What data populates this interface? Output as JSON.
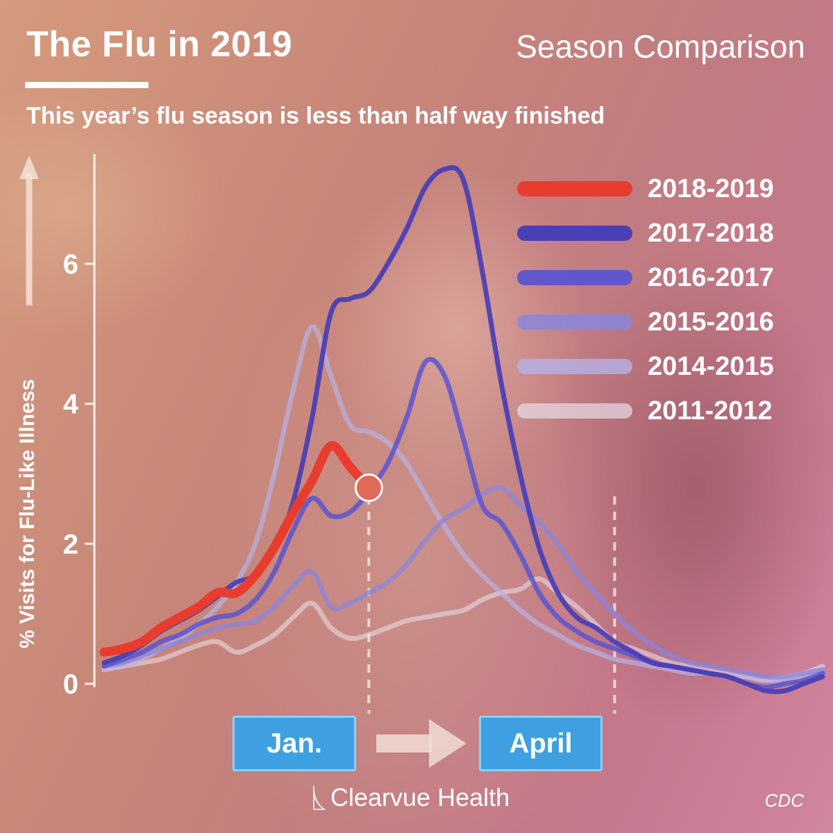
{
  "header": {
    "title": "The Flu in 2019",
    "subheading": "Season Comparison",
    "subtitle": "This year’s flu season is less than half way finished"
  },
  "markers": {
    "start_label": "Jan.",
    "end_label": "April"
  },
  "footer": {
    "brand": "Clearvue Health",
    "source": "CDC"
  },
  "icons": {
    "axis_arrow": "up-arrow-icon",
    "timeline_arrow": "right-arrow-icon",
    "brand_logo": "clearvue-logo-icon"
  },
  "colors": {
    "accent_month_box": "#3ea0e0",
    "highlight_point": "#e06a56"
  },
  "chart_data": {
    "type": "line",
    "xlabel": "",
    "ylabel": "% Visits for Flu-Like Illness",
    "ylim": [
      0,
      7.5
    ],
    "y_ticks": [
      0,
      2,
      4,
      6
    ],
    "grid": false,
    "legend_position": "top-right",
    "x_markers": [
      {
        "label": "Jan.",
        "x": 14
      },
      {
        "label": "April",
        "x": 27
      }
    ],
    "highlight_point": {
      "series": "2018-2019",
      "x": 14,
      "y": 2.8
    },
    "series": [
      {
        "name": "2018-2019",
        "color": "#e83c2e",
        "width": 13,
        "opacity": 1,
        "x": [
          0,
          1,
          2,
          3,
          4,
          5,
          6,
          7,
          8,
          9,
          10,
          11,
          12,
          13,
          14
        ],
        "y": [
          0.45,
          0.5,
          0.6,
          0.8,
          0.95,
          1.1,
          1.3,
          1.3,
          1.55,
          1.95,
          2.45,
          2.9,
          3.4,
          3.1,
          2.8
        ]
      },
      {
        "name": "2017-2018",
        "color": "#4b3fb5",
        "width": 7,
        "opacity": 0.95,
        "x": [
          0,
          1,
          2,
          3,
          4,
          5,
          6,
          7,
          8,
          9,
          10,
          11,
          12,
          13,
          14,
          15,
          16,
          17,
          18,
          19,
          20,
          21,
          22,
          23,
          24,
          25,
          26,
          27,
          28,
          29,
          30,
          31,
          32,
          33,
          34,
          35,
          36,
          37,
          38
        ],
        "y": [
          0.3,
          0.4,
          0.55,
          0.75,
          0.9,
          1.05,
          1.25,
          1.45,
          1.55,
          1.9,
          2.6,
          3.8,
          5.3,
          5.5,
          5.6,
          6.0,
          6.5,
          7.1,
          7.35,
          7.2,
          5.9,
          4.3,
          3.0,
          1.95,
          1.3,
          0.95,
          0.8,
          0.6,
          0.45,
          0.3,
          0.25,
          0.2,
          0.15,
          0.1,
          0.0,
          -0.1,
          -0.1,
          0.0,
          0.1
        ]
      },
      {
        "name": "2016-2017",
        "color": "#5b55cf",
        "width": 7,
        "opacity": 0.85,
        "x": [
          0,
          1,
          2,
          3,
          4,
          5,
          6,
          7,
          8,
          9,
          10,
          11,
          12,
          13,
          14,
          15,
          16,
          17,
          18,
          19,
          20,
          21,
          22,
          23,
          24,
          25,
          26,
          27,
          28,
          29,
          30,
          31,
          32,
          33,
          34,
          35,
          36,
          37,
          38
        ],
        "y": [
          0.25,
          0.35,
          0.45,
          0.6,
          0.7,
          0.85,
          0.95,
          1.0,
          1.2,
          1.6,
          2.2,
          2.65,
          2.4,
          2.45,
          2.75,
          3.15,
          3.8,
          4.6,
          4.4,
          3.5,
          2.55,
          2.3,
          1.85,
          1.3,
          0.95,
          0.75,
          0.6,
          0.5,
          0.4,
          0.3,
          0.25,
          0.2,
          0.15,
          0.1,
          0.0,
          -0.05,
          0.0,
          0.05,
          0.15
        ]
      },
      {
        "name": "2015-2016",
        "color": "#8a86dc",
        "width": 7,
        "opacity": 0.75,
        "x": [
          0,
          1,
          2,
          3,
          4,
          5,
          6,
          7,
          8,
          9,
          10,
          11,
          12,
          13,
          14,
          15,
          16,
          17,
          18,
          19,
          20,
          21,
          22,
          23,
          24,
          25,
          26,
          27,
          28,
          29,
          30,
          31,
          32,
          33,
          34,
          35,
          36,
          37,
          38
        ],
        "y": [
          0.25,
          0.3,
          0.4,
          0.5,
          0.6,
          0.7,
          0.8,
          0.85,
          0.9,
          1.1,
          1.4,
          1.6,
          1.1,
          1.15,
          1.3,
          1.45,
          1.7,
          2.05,
          2.35,
          2.5,
          2.7,
          2.8,
          2.55,
          2.3,
          2.0,
          1.6,
          1.3,
          1.0,
          0.75,
          0.55,
          0.4,
          0.3,
          0.25,
          0.2,
          0.15,
          0.1,
          0.1,
          0.15,
          0.2
        ]
      },
      {
        "name": "2014-2015",
        "color": "#b6b2e6",
        "width": 7,
        "opacity": 0.7,
        "x": [
          0,
          1,
          2,
          3,
          4,
          5,
          6,
          7,
          8,
          9,
          10,
          11,
          12,
          13,
          14,
          15,
          16,
          17,
          18,
          19,
          20,
          21,
          22,
          23,
          24,
          25,
          26,
          27,
          28,
          29,
          30,
          31,
          32,
          33,
          34,
          35,
          36,
          37,
          38
        ],
        "y": [
          0.2,
          0.25,
          0.35,
          0.5,
          0.65,
          0.85,
          1.1,
          1.45,
          2.0,
          3.0,
          4.2,
          5.1,
          4.4,
          3.7,
          3.6,
          3.45,
          3.15,
          2.7,
          2.25,
          1.85,
          1.55,
          1.3,
          1.05,
          0.85,
          0.7,
          0.55,
          0.45,
          0.35,
          0.3,
          0.25,
          0.2,
          0.15,
          0.15,
          0.1,
          0.1,
          0.05,
          0.05,
          0.1,
          0.2
        ]
      },
      {
        "name": "2011-2012",
        "color": "#ebe4ee",
        "width": 7,
        "opacity": 0.55,
        "x": [
          0,
          1,
          2,
          3,
          4,
          5,
          6,
          7,
          8,
          9,
          10,
          11,
          12,
          13,
          14,
          15,
          16,
          17,
          18,
          19,
          20,
          21,
          22,
          23,
          24,
          25,
          26,
          27,
          28,
          29,
          30,
          31,
          32,
          33,
          34,
          35,
          36,
          37,
          38
        ],
        "y": [
          0.2,
          0.25,
          0.3,
          0.35,
          0.45,
          0.55,
          0.6,
          0.45,
          0.55,
          0.7,
          0.95,
          1.15,
          0.8,
          0.65,
          0.7,
          0.8,
          0.9,
          0.95,
          1.0,
          1.05,
          1.2,
          1.3,
          1.35,
          1.5,
          1.3,
          1.1,
          0.85,
          0.6,
          0.5,
          0.4,
          0.3,
          0.25,
          0.2,
          0.15,
          0.1,
          0.05,
          0.1,
          0.15,
          0.25
        ]
      }
    ]
  }
}
